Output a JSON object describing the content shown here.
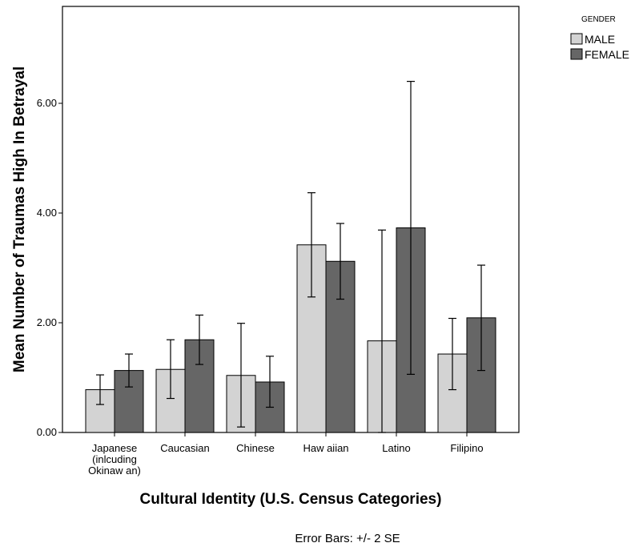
{
  "chart_data": {
    "type": "bar",
    "title": "",
    "xlabel": "Cultural Identity (U.S. Census Categories)",
    "ylabel": "Mean Number of Traumas High In Betrayal",
    "ylim": [
      0,
      7.8
    ],
    "yticks": [
      "0.00",
      "2.00",
      "4.00",
      "6.00"
    ],
    "ytick_values": [
      0,
      2,
      4,
      6
    ],
    "categories": [
      [
        "Japanese",
        "(inlcuding",
        "Okinaw an)"
      ],
      [
        "Caucasian"
      ],
      [
        "Chinese"
      ],
      [
        "Haw aiian"
      ],
      [
        "Latino"
      ],
      [
        "Filipino"
      ]
    ],
    "series": [
      {
        "name": "MALE",
        "color": "#d3d3d3",
        "values": [
          0.78,
          1.15,
          1.04,
          3.42,
          1.67,
          1.43
        ],
        "error_low": [
          0.51,
          0.62,
          0.1,
          2.47,
          0.0,
          0.78
        ],
        "error_high": [
          1.05,
          1.69,
          1.99,
          4.37,
          3.69,
          2.08
        ]
      },
      {
        "name": "FEMALE",
        "color": "#666666",
        "values": [
          1.13,
          1.69,
          0.92,
          3.12,
          3.73,
          2.09
        ],
        "error_low": [
          0.83,
          1.24,
          0.46,
          2.43,
          1.06,
          1.13
        ],
        "error_high": [
          1.43,
          2.14,
          1.39,
          3.81,
          6.4,
          3.05
        ]
      }
    ],
    "legend": {
      "title": "GENDER",
      "position": "top-right"
    },
    "grid": false,
    "footnote": "Error Bars: +/- 2 SE"
  }
}
